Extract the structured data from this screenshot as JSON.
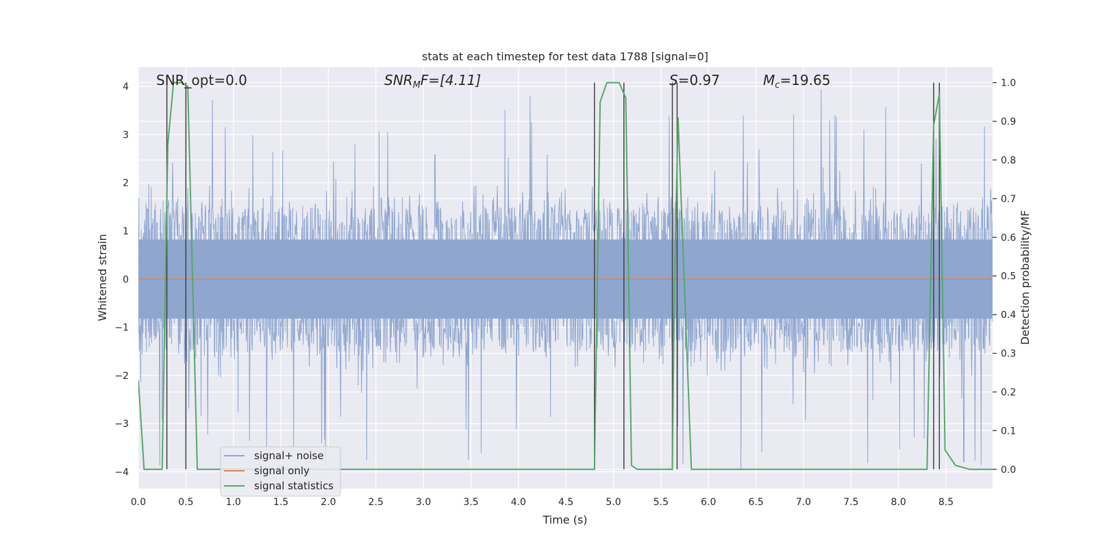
{
  "chart_data": {
    "type": "line",
    "title": "stats at each timestep for test data 1788 [signal=0]",
    "xlabel": "Time (s)",
    "ylabel": "Whitened strain",
    "ylabel_right": "Detection probability/MF",
    "xlim": [
      0.0,
      8.99
    ],
    "ylim": [
      -4.35,
      4.4
    ],
    "ylim_right": [
      -0.05,
      1.04
    ],
    "xticks": [
      0.0,
      0.5,
      1.0,
      1.5,
      2.0,
      2.5,
      3.0,
      3.5,
      4.0,
      4.5,
      5.0,
      5.5,
      6.0,
      6.5,
      7.0,
      7.5,
      8.0,
      8.5
    ],
    "xtick_labels": [
      "0.0",
      "0.5",
      "1.0",
      "1.5",
      "2.0",
      "2.5",
      "3.0",
      "3.5",
      "4.0",
      "4.5",
      "5.0",
      "5.5",
      "6.0",
      "6.5",
      "7.0",
      "7.5",
      "8.0",
      "8.5"
    ],
    "yticks": [
      -4,
      -3,
      -2,
      -1,
      0,
      1,
      2,
      3,
      4
    ],
    "ytick_labels": [
      "−4",
      "−3",
      "−2",
      "−1",
      "0",
      "1",
      "2",
      "3",
      "4"
    ],
    "yticks_right": [
      0.0,
      0.1,
      0.2,
      0.3,
      0.4,
      0.5,
      0.6,
      0.7,
      0.8,
      0.9,
      1.0
    ],
    "ytick_labels_right": [
      "0.0",
      "0.1",
      "0.2",
      "0.3",
      "0.4",
      "0.5",
      "0.6",
      "0.7",
      "0.8",
      "0.9",
      "1.0"
    ],
    "annotations": {
      "snr_opt": "SNR_opt=0.0",
      "snr_mf_prefix": "SNR",
      "snr_mf_sub": "M",
      "snr_mf_suffix": "F=[4.11]",
      "s_label": "S",
      "s_value": "=0.97",
      "mc_label": "M",
      "mc_sub": "c",
      "mc_value": "=19.65"
    },
    "legend": {
      "placement": "lower-left",
      "entries": [
        "signal+ noise",
        "signal only",
        "signal statistics"
      ]
    },
    "colors": {
      "noise": "#8fa6cf",
      "signal_only": "#dd8452",
      "statistics": "#55a868",
      "vlines": "#404040",
      "background": "#eaeaf2",
      "grid": "#ffffff"
    },
    "series": [
      {
        "name": "signal+ noise",
        "type": "noise-band",
        "typical_upper": 1.5,
        "typical_lower": -1.5,
        "spike_max": 4.0,
        "spike_min": -4.0,
        "n_samples": 1800
      },
      {
        "name": "signal only",
        "x": [
          0.0,
          8.99
        ],
        "y": [
          0.0,
          0.0
        ]
      },
      {
        "name": "signal statistics",
        "x": [
          0.0,
          0.06,
          0.25,
          0.31,
          0.37,
          0.46,
          0.52,
          0.62,
          4.8,
          4.86,
          4.93,
          5.06,
          5.13,
          5.19,
          5.25,
          5.62,
          5.64,
          5.68,
          5.82,
          8.3,
          8.37,
          8.43,
          8.49,
          8.6,
          8.75,
          8.99
        ],
        "y": [
          0.23,
          0.0,
          0.0,
          0.84,
          1.0,
          1.0,
          0.99,
          0.0,
          0.0,
          0.95,
          1.0,
          1.0,
          0.96,
          0.01,
          0.0,
          0.0,
          0.45,
          0.91,
          0.0,
          0.0,
          0.89,
          0.97,
          0.05,
          0.01,
          0.0,
          0.0
        ]
      }
    ],
    "vlines_x": [
      0.3,
      0.5,
      4.8,
      5.11,
      5.62,
      5.67,
      8.37,
      8.43
    ]
  }
}
